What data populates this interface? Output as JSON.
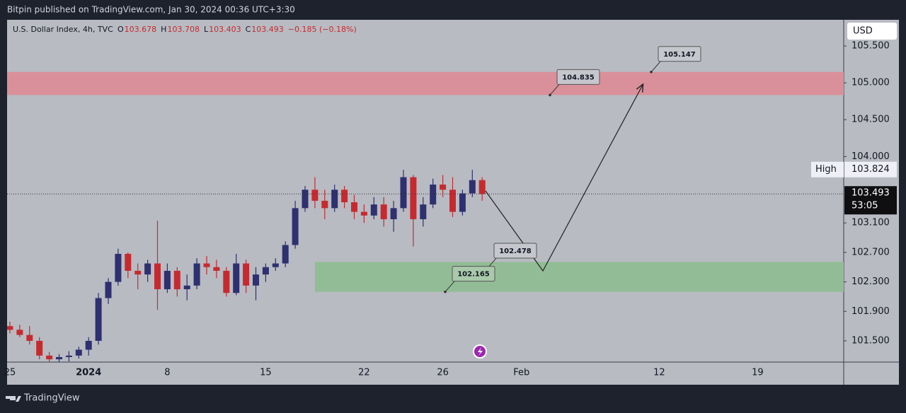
{
  "header": {
    "published": "Bitpin published on TradingView.com, Jan 30, 2024 00:36 UTC+3:30"
  },
  "footer": {
    "brand": "TradingView"
  },
  "chart_data": {
    "type": "candlestick",
    "symbol": "U.S. Dollar Index, 4h, TVC",
    "ohlc_legend": [
      {
        "label": "O",
        "value": "103.678"
      },
      {
        "label": "H",
        "value": "103.708"
      },
      {
        "label": "L",
        "value": "103.403"
      },
      {
        "label": "C",
        "value": "103.493"
      }
    ],
    "change": "−0.185 (−0.18%)",
    "currency": "USD",
    "categories": [
      "25",
      null,
      null,
      null,
      null,
      null,
      null,
      null,
      "2024",
      null,
      null,
      null,
      null,
      null,
      null,
      null,
      "8",
      null,
      null,
      null,
      null,
      null,
      null,
      null,
      null,
      null,
      "15",
      null,
      null,
      null,
      null,
      null,
      null,
      null,
      null,
      null,
      "22",
      null,
      null,
      null,
      null,
      null,
      null,
      null,
      "26",
      null,
      null,
      null,
      null,
      null,
      null,
      null,
      "Feb",
      null,
      null,
      null,
      null,
      null,
      null,
      null,
      null,
      null,
      null,
      null,
      null,
      null,
      "12",
      null,
      null,
      null,
      null,
      null,
      null,
      null,
      null,
      null,
      "19",
      null,
      null,
      null,
      null,
      null,
      null,
      null,
      null
    ],
    "open": [
      101.7,
      101.65,
      101.58,
      101.5,
      101.3,
      101.25,
      101.28,
      101.3,
      101.38,
      101.5,
      102.08,
      102.3,
      102.68,
      102.45,
      102.4,
      102.55,
      102.2,
      102.45,
      102.2,
      102.25,
      102.55,
      102.5,
      102.45,
      102.15,
      102.55,
      102.25,
      102.4,
      102.5,
      102.55,
      102.8,
      103.3,
      103.55,
      103.4,
      103.3,
      103.55,
      103.38,
      103.25,
      103.2,
      103.35,
      103.15,
      103.3,
      103.72,
      103.15,
      103.35,
      103.62,
      103.55,
      103.25,
      103.5,
      103.68,
      null,
      null,
      null,
      null,
      null,
      null,
      null,
      null,
      null,
      null,
      null,
      null,
      null,
      null,
      null,
      null,
      null,
      null,
      null,
      null,
      null,
      null,
      null,
      null,
      null,
      null,
      null,
      null,
      null,
      null,
      null,
      null,
      null,
      null,
      null,
      null
    ],
    "high": [
      101.76,
      101.72,
      101.7,
      101.55,
      101.35,
      101.32,
      101.36,
      101.42,
      101.55,
      102.15,
      102.35,
      102.75,
      102.7,
      102.55,
      102.6,
      103.13,
      102.55,
      102.5,
      102.4,
      102.62,
      102.65,
      102.6,
      102.5,
      102.68,
      102.6,
      102.5,
      102.55,
      102.62,
      102.85,
      103.4,
      103.6,
      103.72,
      103.55,
      103.62,
      103.6,
      103.48,
      103.35,
      103.45,
      103.45,
      103.4,
      103.82,
      103.75,
      103.45,
      103.7,
      103.75,
      103.72,
      103.55,
      103.82,
      103.72,
      null,
      null,
      null,
      null,
      null,
      null,
      null,
      null,
      null,
      null,
      null,
      null,
      null,
      null,
      null,
      null,
      null,
      null,
      null,
      null,
      null,
      null,
      null,
      null,
      null,
      null,
      null,
      null,
      null,
      null,
      null,
      null,
      null,
      null,
      null,
      null
    ],
    "low": [
      101.6,
      101.55,
      101.45,
      101.25,
      101.2,
      101.18,
      101.22,
      101.26,
      101.3,
      101.45,
      102.0,
      102.25,
      102.35,
      102.2,
      102.3,
      101.92,
      102.15,
      102.1,
      102.05,
      102.2,
      102.4,
      102.35,
      102.1,
      102.12,
      102.15,
      102.05,
      102.3,
      102.45,
      102.5,
      102.75,
      103.25,
      103.3,
      103.15,
      103.25,
      103.3,
      103.15,
      103.1,
      103.15,
      103.05,
      102.98,
      103.25,
      102.78,
      103.05,
      103.3,
      103.45,
      103.18,
      103.2,
      103.45,
      103.4,
      null,
      null,
      null,
      null,
      null,
      null,
      null,
      null,
      null,
      null,
      null,
      null,
      null,
      null,
      null,
      null,
      null,
      null,
      null,
      null,
      null,
      null,
      null,
      null,
      null,
      null,
      null,
      null,
      null,
      null,
      null,
      null,
      null,
      null,
      null,
      null
    ],
    "close": [
      101.65,
      101.58,
      101.5,
      101.3,
      101.25,
      101.28,
      101.3,
      101.38,
      101.5,
      102.08,
      102.3,
      102.68,
      102.45,
      102.4,
      102.55,
      102.2,
      102.45,
      102.2,
      102.25,
      102.55,
      102.5,
      102.45,
      102.15,
      102.55,
      102.25,
      102.4,
      102.5,
      102.55,
      102.8,
      103.3,
      103.55,
      103.4,
      103.3,
      103.55,
      103.38,
      103.25,
      103.2,
      103.35,
      103.15,
      103.3,
      103.72,
      103.15,
      103.35,
      103.62,
      103.55,
      103.25,
      103.5,
      103.68,
      103.493,
      null,
      null,
      null,
      null,
      null,
      null,
      null,
      null,
      null,
      null,
      null,
      null,
      null,
      null,
      null,
      null,
      null,
      null,
      null,
      null,
      null,
      null,
      null,
      null,
      null,
      null,
      null,
      null,
      null,
      null,
      null,
      null,
      null,
      null,
      null,
      null
    ],
    "up_color": "#2e3070",
    "down_color": "#c62a2f",
    "ylim": [
      101.212,
      105.855
    ],
    "yticks": [
      {
        "value": 105.5,
        "label": "105.500"
      },
      {
        "value": 105,
        "label": "105.000"
      },
      {
        "value": 104.5,
        "label": "104.500"
      },
      {
        "value": 104,
        "label": "104.000"
      },
      {
        "value": 103.1,
        "label": "103.100"
      },
      {
        "value": 102.7,
        "label": "102.700"
      },
      {
        "value": 102.3,
        "label": "102.300"
      },
      {
        "value": 101.9,
        "label": "101.900"
      },
      {
        "value": 101.5,
        "label": "101.500"
      }
    ],
    "zones": [
      {
        "top": 105.147,
        "bottom": 104.835,
        "color": "#d9909a"
      },
      {
        "top": 102.57,
        "bottom": 102.165,
        "color": "#92bc95"
      }
    ],
    "callouts": [
      105.147,
      104.835,
      102.478,
      102.165
    ],
    "last_price": {
      "value": 103.493,
      "timer": "53:05"
    },
    "high_marker": {
      "label": "High",
      "value": 103.824
    }
  }
}
